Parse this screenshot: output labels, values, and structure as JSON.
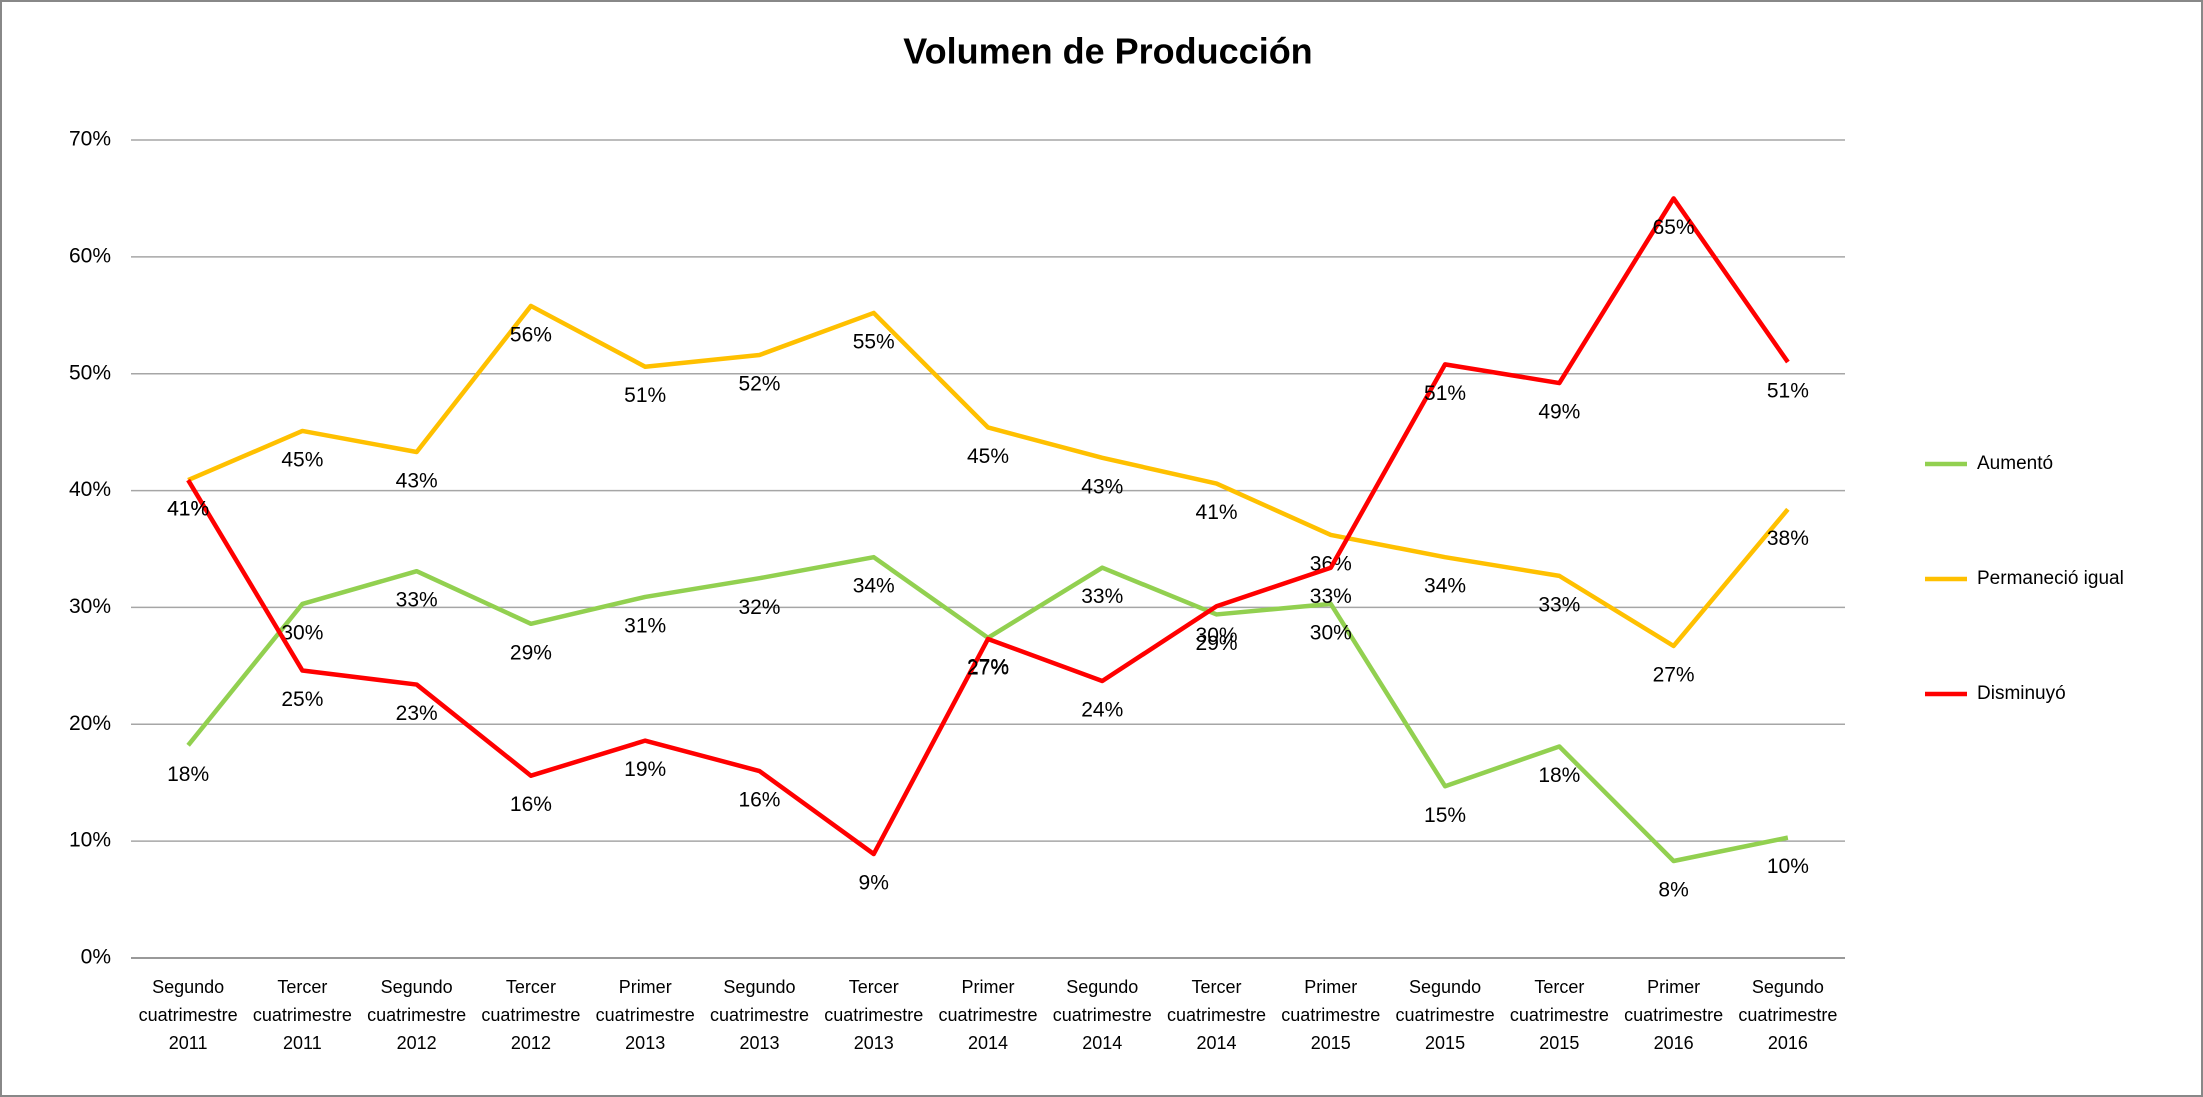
{
  "chart_data": {
    "type": "line",
    "title": "Volumen de Producción",
    "categories": [
      "Segundo cuatrimestre 2011",
      "Tercer cuatrimestre 2011",
      "Segundo cuatrimestre 2012",
      "Tercer cuatrimestre 2012",
      "Primer cuatrimestre 2013",
      "Segundo cuatrimestre 2013",
      "Tercer cuatrimestre 2013",
      "Primer cuatrimestre 2014",
      "Segundo cuatrimestre 2014",
      "Tercer cuatrimestre 2014",
      "Primer cuatrimestre 2015",
      "Segundo cuatrimestre 2015",
      "Tercer cuatrimestre 2015",
      "Primer cuatrimestre 2016",
      "Segundo cuatrimestre 2016"
    ],
    "series": [
      {
        "name": "Aumentó",
        "color": "#92d050",
        "values": [
          18.2,
          30.3,
          33.1,
          28.6,
          30.9,
          32.5,
          34.3,
          27.4,
          33.4,
          29.4,
          30.3,
          14.7,
          18.1,
          8.3,
          10.3
        ],
        "value_labels": [
          "18%",
          "30%",
          "33%",
          "29%",
          "31%",
          "32%",
          "34%",
          "27%",
          "33%",
          "29%",
          "30%",
          "15%",
          "18%",
          "8%",
          "10%"
        ]
      },
      {
        "name": "Permaneció igual",
        "color": "#ffc000",
        "values": [
          40.9,
          45.1,
          43.3,
          55.8,
          50.6,
          51.6,
          55.2,
          45.4,
          42.8,
          40.6,
          36.2,
          34.3,
          32.7,
          26.7,
          38.4
        ],
        "value_labels": [
          "41%",
          "45%",
          "43%",
          "56%",
          "51%",
          "52%",
          "55%",
          "45%",
          "43%",
          "41%",
          "36%",
          "34%",
          "33%",
          "27%",
          "38%"
        ]
      },
      {
        "name": "Disminuyó",
        "color": "#ff0000",
        "values": [
          40.9,
          24.6,
          23.4,
          15.6,
          18.6,
          16.0,
          8.9,
          27.3,
          23.7,
          30.1,
          33.4,
          50.8,
          49.2,
          65.0,
          51.0
        ],
        "value_labels": [
          "41%",
          "25%",
          "23%",
          "16%",
          "19%",
          "16%",
          "9%",
          "27%",
          "24%",
          "30%",
          "33%",
          "51%",
          "49%",
          "65%",
          "51%"
        ]
      }
    ],
    "ylim": [
      0,
      70
    ],
    "yticks": [
      {
        "value": 0,
        "label": "0%"
      },
      {
        "value": 10,
        "label": "10%"
      },
      {
        "value": 20,
        "label": "20%"
      },
      {
        "value": 30,
        "label": "30%"
      },
      {
        "value": 40,
        "label": "40%"
      },
      {
        "value": 50,
        "label": "50%"
      },
      {
        "value": 60,
        "label": "60%"
      },
      {
        "value": 70,
        "label": "70%"
      }
    ],
    "grid": true,
    "legend": "right"
  }
}
